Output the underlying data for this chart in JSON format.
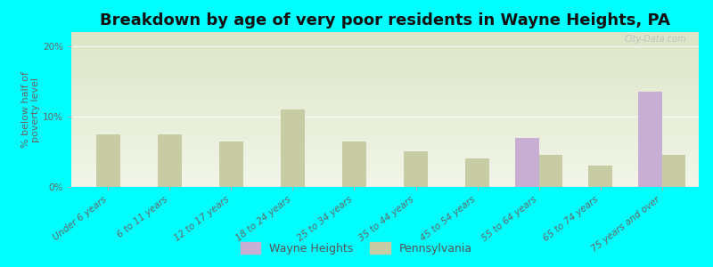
{
  "title": "Breakdown by age of very poor residents in Wayne Heights, PA",
  "ylabel": "% below half of\npoverty level",
  "categories": [
    "Under 6 years",
    "6 to 11 years",
    "12 to 17 years",
    "18 to 24 years",
    "25 to 34 years",
    "35 to 44 years",
    "45 to 54 years",
    "55 to 64 years",
    "65 to 74 years",
    "75 years and over"
  ],
  "wayne_heights": [
    null,
    null,
    null,
    null,
    null,
    null,
    null,
    7.0,
    null,
    13.5
  ],
  "pennsylvania": [
    7.5,
    7.5,
    6.5,
    11.0,
    6.5,
    5.0,
    4.0,
    4.5,
    3.0,
    4.5
  ],
  "wayne_color": "#c9aed4",
  "pa_color": "#c8cca4",
  "background_color": "#00ffff",
  "plot_bg_top": "#dde5c8",
  "plot_bg_bottom": "#f2f5e8",
  "ylim": [
    0,
    22
  ],
  "yticks": [
    0,
    10,
    20
  ],
  "ytick_labels": [
    "0%",
    "10%",
    "20%"
  ],
  "title_fontsize": 13,
  "axis_label_fontsize": 8,
  "tick_fontsize": 7.5,
  "legend_wayne": "Wayne Heights",
  "legend_pa": "Pennsylvania",
  "bar_width": 0.38
}
